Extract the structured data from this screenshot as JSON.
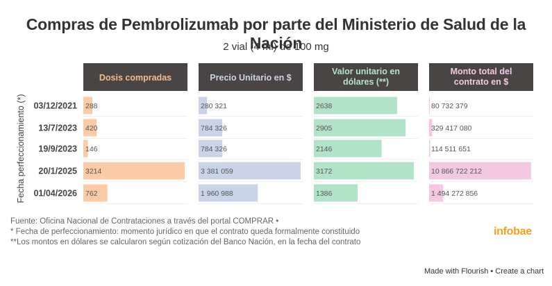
{
  "chart_data": {
    "type": "bar",
    "orientation": "horizontal",
    "title": "Compras de Pembrolizumab por parte del Ministerio de Salud de la Nación",
    "subtitle": "2 vial (4 ml) de 100 mg",
    "ylabel": "Fecha perfeccionamiento (*)",
    "categories": [
      "03/12/2021",
      "13/7/2023",
      "19/9/2023",
      "20/1/2025",
      "01/04/2026"
    ],
    "series": [
      {
        "name": "Dosis compradas",
        "header_lines": [
          "Dosis compradas"
        ],
        "color": "#fbcba7",
        "header_text_color": "#f7ba8b",
        "values": [
          288,
          420,
          146,
          3214,
          762
        ],
        "labels": [
          "288",
          "420",
          "146",
          "3214",
          "762"
        ],
        "xlim": [
          0,
          3300
        ]
      },
      {
        "name": "Precio Unitario en $",
        "header_lines": [
          "Precio Unitario en $"
        ],
        "color": "#cad3e7",
        "header_text_color": "#cad3e7",
        "values": [
          280321,
          784326,
          784326,
          3381059,
          1960988
        ],
        "labels": [
          "280 321",
          "784 326",
          "784 326",
          "3 381 059",
          "1 960 988"
        ],
        "xlim": [
          0,
          3450000
        ]
      },
      {
        "name": "Valor unitario en dólares (**)",
        "header_lines": [
          "Valor unitario en",
          "dólares (**)"
        ],
        "color": "#b2e3c9",
        "header_text_color": "#b2e3c9",
        "values": [
          2638,
          2905,
          2146,
          3172,
          1386
        ],
        "labels": [
          "2638",
          "2905",
          "2146",
          "3172",
          "1386"
        ],
        "xlim": [
          0,
          3300
        ]
      },
      {
        "name": "Monto total del contrato en $",
        "header_lines": [
          "Monto total del",
          "contrato en $"
        ],
        "color": "#f3c8e2",
        "header_text_color": "#f3c8e2",
        "values": [
          80732379,
          329417080,
          114511651,
          10866722212,
          1494272856
        ],
        "labels": [
          "80 732 379",
          "329 417 080",
          "114 511 651",
          "10 866 722 212",
          "1 494 272 856"
        ],
        "xlim": [
          0,
          11100000000
        ]
      }
    ]
  },
  "footnotes": [
    "Fuente: Oficina Nacional de Contrataciones a través del portal COMPRAR •",
    "* Fecha de perfeccionamiento: momento jurídico en que el contrato queda formalmente constituido",
    "**Los montos en dólares se calcularon según cotización del Banco Nación, en la fecha del contrato"
  ],
  "brand": "infobae",
  "credits": {
    "made_with": "Made with Flourish",
    "separator": " • ",
    "create": "Create a chart"
  },
  "colors": {
    "header_bg": "#4a4545",
    "label_text": "#444444",
    "value_text": "#555555"
  }
}
